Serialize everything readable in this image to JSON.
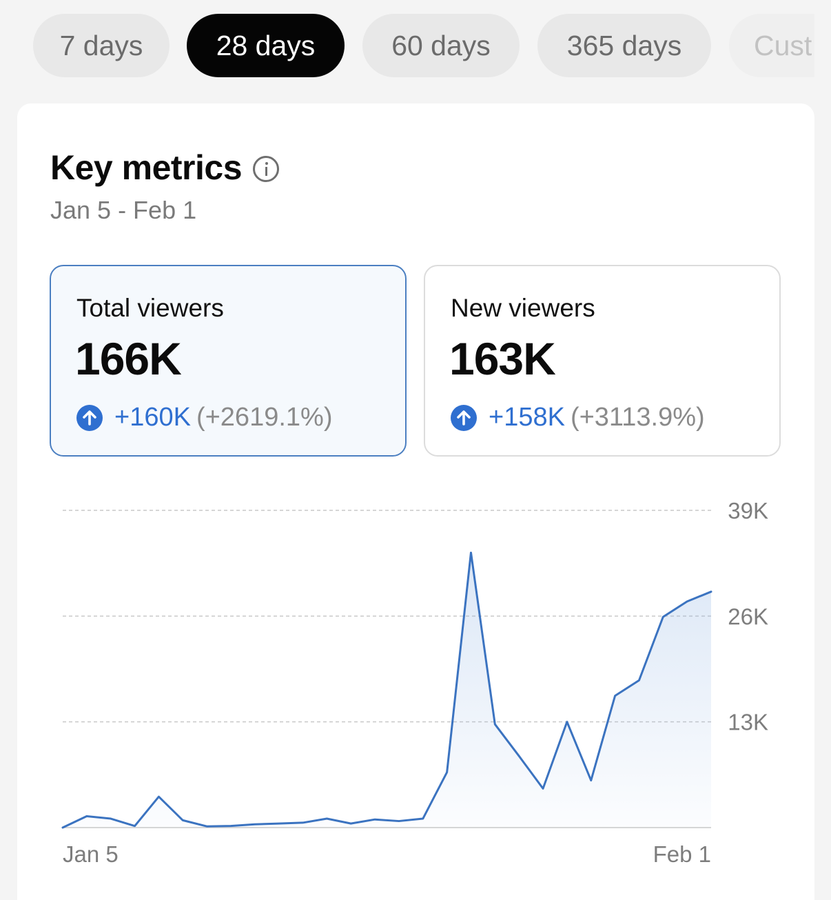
{
  "tabs": [
    {
      "label": "7 days",
      "active": false
    },
    {
      "label": "28 days",
      "active": true
    },
    {
      "label": "60 days",
      "active": false
    },
    {
      "label": "365 days",
      "active": false
    },
    {
      "label": "Cust",
      "active": false
    }
  ],
  "key_metrics": {
    "title": "Key metrics",
    "date_range": "Jan 5 - Feb 1"
  },
  "metrics": [
    {
      "label": "Total viewers",
      "value": "166K",
      "delta": "+160K",
      "percent": "(+2619.1%)",
      "selected": true
    },
    {
      "label": "New viewers",
      "value": "163K",
      "delta": "+158K",
      "percent": "(+3113.9%)",
      "selected": false
    }
  ],
  "colors": {
    "accent": "#2f6fd0",
    "line": "#3b73c0",
    "selected_border": "#4b7fc1"
  },
  "chart_data": {
    "type": "area",
    "x_tick_labels": [
      "Jan 5",
      "Feb 1"
    ],
    "y_ticks": [
      13000,
      26000,
      39000
    ],
    "y_tick_labels": [
      "13K",
      "26K",
      "39K"
    ],
    "ylim": [
      0,
      39000
    ],
    "grid": true,
    "series": [
      {
        "values": [
          0,
          1400,
          1100,
          200,
          3800,
          900,
          150,
          200,
          400,
          500,
          600,
          1100,
          500,
          1000,
          800,
          1100,
          6800,
          33800,
          12700,
          8800,
          4800,
          13000,
          5800,
          16200,
          18100,
          25900,
          27800,
          29000
        ]
      }
    ]
  }
}
